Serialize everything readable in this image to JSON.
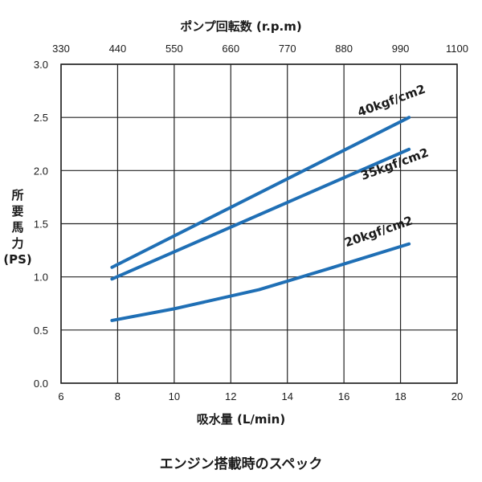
{
  "caption": "エンジン搭載時のスペック",
  "colors": {
    "series": "#1f6fb5",
    "grid": "#222222"
  },
  "chart_data": {
    "type": "line",
    "title": "",
    "xlabel": "吸水量 (L/min)",
    "ylabel_lines": [
      "所",
      "要",
      "馬",
      "力",
      "(PS)"
    ],
    "x2label": "ポンプ回転数 (r.p.m)",
    "xlim": [
      6,
      20
    ],
    "ylim": [
      0,
      3.0
    ],
    "grid": true,
    "x_ticks": [
      "6",
      "8",
      "10",
      "12",
      "14",
      "16",
      "18",
      "20"
    ],
    "y_ticks": [
      "0.0",
      "0.5",
      "1.0",
      "1.5",
      "2.0",
      "2.5",
      "3.0"
    ],
    "x2_ticks": [
      "330",
      "440",
      "550",
      "660",
      "770",
      "880",
      "990",
      "1100"
    ],
    "series": [
      {
        "name": "40kgf/cm2",
        "x": [
          7.8,
          18.3
        ],
        "y": [
          1.09,
          2.5
        ]
      },
      {
        "name": "35kgf/cm2",
        "x": [
          7.8,
          18.3
        ],
        "y": [
          0.98,
          2.2
        ]
      },
      {
        "name": "20kgf/cm2",
        "x": [
          7.8,
          10.0,
          13.0,
          15.5,
          18.3
        ],
        "y": [
          0.59,
          0.7,
          0.88,
          1.08,
          1.31
        ]
      }
    ]
  }
}
